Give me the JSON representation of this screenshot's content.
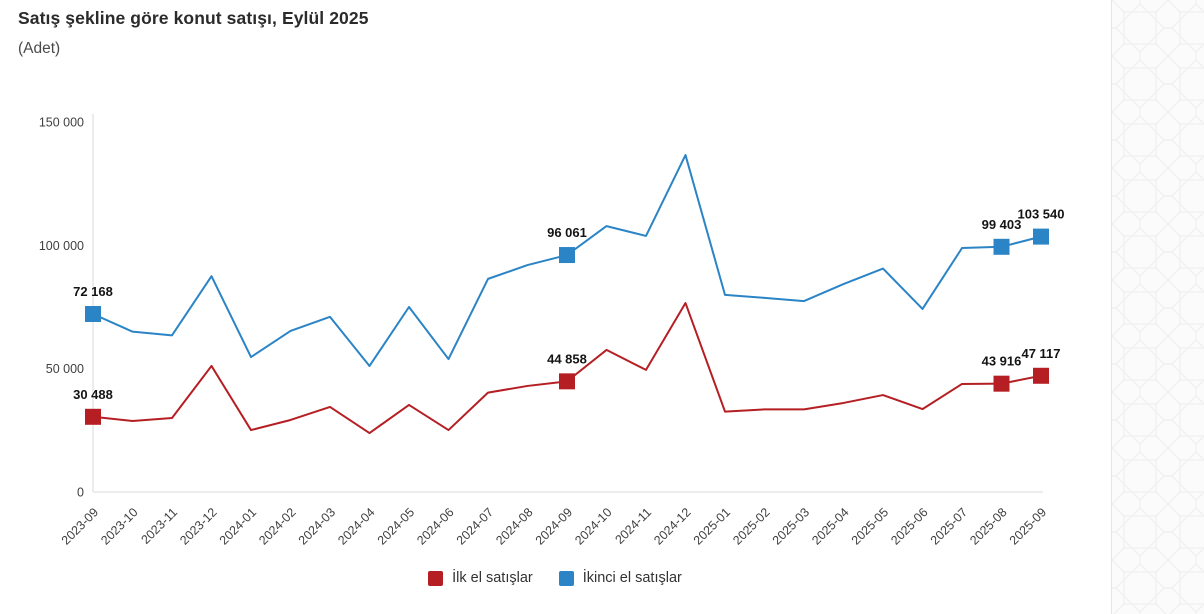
{
  "header": {
    "title": "Satış şekline göre konut satışı, Eylül 2025",
    "subtitle": "(Adet)"
  },
  "legend": [
    {
      "label": "İlk el satışlar",
      "color": "#b51f24"
    },
    {
      "label": "İkinci el satışlar",
      "color": "#2a84c6"
    }
  ],
  "colors": {
    "first_hand": "#b51f24",
    "second_hand": "#2a84c6",
    "axis": "#d9d9d9",
    "tick_text": "#404040",
    "data_label_text": "#141414"
  },
  "chart_data": {
    "type": "line",
    "title": "Satış şekline göre konut satışı, Eylül 2025",
    "subtitle": "(Adet)",
    "unit": "Adet",
    "x": [
      "2023-09",
      "2023-10",
      "2023-11",
      "2023-12",
      "2024-01",
      "2024-02",
      "2024-03",
      "2024-04",
      "2024-05",
      "2024-06",
      "2024-07",
      "2024-08",
      "2024-09",
      "2024-10",
      "2024-11",
      "2024-12",
      "2025-01",
      "2025-02",
      "2025-03",
      "2025-04",
      "2025-05",
      "2025-06",
      "2025-07",
      "2025-08",
      "2025-09"
    ],
    "series": [
      {
        "id": "ilk-el-satislar",
        "name": "İlk el satışlar",
        "color": "#b51f24",
        "values": [
          30488,
          28800,
          30000,
          51100,
          25100,
          29200,
          34500,
          23900,
          35300,
          25100,
          40300,
          43000,
          44858,
          57600,
          49500,
          76600,
          32600,
          33500,
          33500,
          36100,
          39300,
          33600,
          43800,
          43916,
          47117
        ],
        "labeled_indices": [
          0,
          12,
          23,
          24
        ],
        "point_labels": {
          "0": "30 488",
          "12": "44 858",
          "23": "43 916",
          "24": "47 117"
        }
      },
      {
        "id": "ikinci-el-satislar",
        "name": "İkinci el satışlar",
        "color": "#2a84c6",
        "values": [
          72168,
          65000,
          63500,
          87500,
          54700,
          65300,
          71000,
          51100,
          75000,
          53900,
          86400,
          92000,
          96061,
          107800,
          103800,
          136600,
          79900,
          78700,
          77400,
          84300,
          90600,
          74200,
          98900,
          99403,
          103540
        ],
        "labeled_indices": [
          0,
          12,
          23,
          24
        ],
        "point_labels": {
          "0": "72 168",
          "12": "96 061",
          "23": "99 403",
          "24": "103 540"
        }
      }
    ],
    "ylim": [
      0,
      150000
    ],
    "yticks": [
      0,
      50000,
      100000,
      150000
    ],
    "ytick_labels": [
      "0",
      "50 000",
      "100 000",
      "150 000"
    ],
    "xlabel": "",
    "ylabel": "",
    "grid": false,
    "legend_position": "bottom"
  }
}
